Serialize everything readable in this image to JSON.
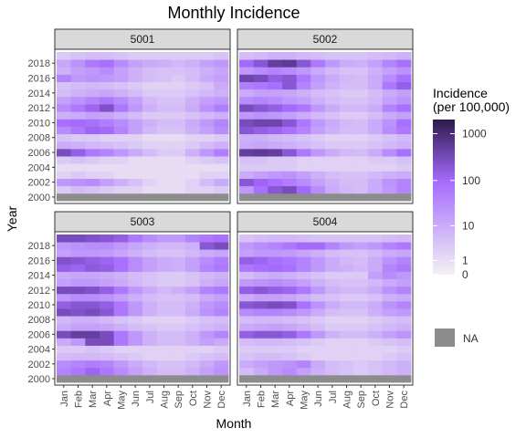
{
  "chart_data": {
    "type": "heatmap",
    "title": "Monthly Incidence",
    "xlabel": "Month",
    "ylabel": "Year",
    "months": [
      "Jan",
      "Feb",
      "Mar",
      "Apr",
      "May",
      "Jun",
      "Jul",
      "Aug",
      "Sep",
      "Oct",
      "Nov",
      "Dec"
    ],
    "years": [
      2000,
      2001,
      2002,
      2003,
      2004,
      2005,
      2006,
      2007,
      2008,
      2009,
      2010,
      2011,
      2012,
      2013,
      2014,
      2015,
      2016,
      2017,
      2018,
      2019
    ],
    "y_tick_labels": [
      "2000",
      "2002",
      "2004",
      "2006",
      "2008",
      "2010",
      "2012",
      "2014",
      "2016",
      "2018"
    ],
    "legend": {
      "title_line1": "Incidence",
      "title_line2": "(per 100,000)",
      "scale": "log",
      "breaks": [
        {
          "value": 0,
          "label": "0"
        },
        {
          "value": 1,
          "label": "1"
        },
        {
          "value": 10,
          "label": "10"
        },
        {
          "value": 100,
          "label": "100"
        },
        {
          "value": 1000,
          "label": "1000"
        }
      ],
      "max": 2000,
      "na_label": "NA",
      "colors": [
        "#f2f2f2",
        "#a66bff",
        "#2d1a4d"
      ],
      "na_color": "#8c8c8c"
    },
    "facets": [
      {
        "name": "5001",
        "values": [
          [
            null,
            null,
            null,
            null,
            null,
            null,
            null,
            null,
            null,
            null,
            null,
            null
          ],
          [
            3,
            5,
            4,
            3,
            2,
            2,
            1,
            1,
            1,
            2,
            2,
            3
          ],
          [
            20,
            25,
            30,
            15,
            8,
            4,
            2,
            1,
            1,
            2,
            5,
            10
          ],
          [
            2,
            3,
            2,
            2,
            1,
            1,
            1,
            1,
            1,
            1,
            2,
            2
          ],
          [
            1,
            1,
            1,
            1,
            1,
            1,
            1,
            1,
            1,
            1,
            1,
            1
          ],
          [
            3,
            4,
            3,
            2,
            2,
            1,
            1,
            1,
            1,
            2,
            3,
            4
          ],
          [
            300,
            150,
            60,
            40,
            20,
            10,
            5,
            3,
            3,
            8,
            20,
            50
          ],
          [
            10,
            8,
            6,
            5,
            4,
            3,
            2,
            2,
            2,
            3,
            5,
            8
          ],
          [
            4,
            3,
            3,
            2,
            2,
            2,
            1,
            1,
            1,
            2,
            2,
            3
          ],
          [
            30,
            60,
            120,
            100,
            40,
            15,
            6,
            4,
            4,
            8,
            15,
            30
          ],
          [
            80,
            100,
            80,
            50,
            30,
            15,
            8,
            5,
            5,
            10,
            20,
            40
          ],
          [
            8,
            10,
            15,
            12,
            8,
            5,
            3,
            3,
            3,
            4,
            6,
            8
          ],
          [
            30,
            60,
            120,
            250,
            60,
            20,
            8,
            5,
            5,
            10,
            25,
            50
          ],
          [
            15,
            25,
            40,
            60,
            30,
            15,
            6,
            4,
            4,
            8,
            15,
            20
          ],
          [
            5,
            8,
            10,
            12,
            8,
            5,
            3,
            3,
            3,
            4,
            6,
            8
          ],
          [
            4,
            5,
            6,
            5,
            4,
            3,
            2,
            2,
            2,
            3,
            4,
            10
          ],
          [
            40,
            20,
            25,
            20,
            15,
            8,
            5,
            4,
            3,
            5,
            10,
            15
          ],
          [
            8,
            15,
            20,
            30,
            15,
            8,
            5,
            4,
            4,
            5,
            8,
            12
          ],
          [
            12,
            25,
            60,
            80,
            30,
            15,
            10,
            8,
            6,
            8,
            15,
            20
          ],
          [
            3,
            4,
            5,
            5,
            4,
            3,
            3,
            3,
            3,
            3,
            3,
            4
          ]
        ]
      },
      {
        "name": "5002",
        "values": [
          [
            null,
            null,
            null,
            null,
            null,
            null,
            null,
            null,
            null,
            null,
            null,
            null
          ],
          [
            20,
            80,
            200,
            300,
            100,
            30,
            10,
            6,
            5,
            10,
            20,
            40
          ],
          [
            200,
            120,
            80,
            50,
            30,
            15,
            8,
            5,
            5,
            10,
            25,
            40
          ],
          [
            10,
            15,
            20,
            25,
            15,
            8,
            5,
            4,
            4,
            6,
            8,
            10
          ],
          [
            3,
            3,
            3,
            3,
            2,
            2,
            2,
            2,
            2,
            2,
            2,
            3
          ],
          [
            4,
            4,
            3,
            3,
            2,
            2,
            2,
            2,
            2,
            3,
            3,
            4
          ],
          [
            500,
            600,
            500,
            200,
            60,
            20,
            10,
            6,
            5,
            10,
            30,
            80
          ],
          [
            10,
            12,
            10,
            8,
            6,
            4,
            3,
            3,
            3,
            4,
            6,
            8
          ],
          [
            8,
            8,
            6,
            5,
            4,
            3,
            2,
            2,
            2,
            3,
            4,
            6
          ],
          [
            200,
            150,
            120,
            80,
            40,
            15,
            8,
            5,
            5,
            10,
            30,
            60
          ],
          [
            300,
            400,
            400,
            200,
            60,
            20,
            10,
            6,
            5,
            10,
            25,
            80
          ],
          [
            20,
            25,
            20,
            15,
            10,
            6,
            4,
            3,
            3,
            5,
            10,
            15
          ],
          [
            300,
            200,
            150,
            100,
            60,
            20,
            10,
            6,
            6,
            10,
            40,
            80
          ],
          [
            30,
            40,
            30,
            20,
            15,
            8,
            5,
            4,
            4,
            6,
            15,
            25
          ],
          [
            10,
            15,
            15,
            12,
            8,
            5,
            4,
            3,
            3,
            5,
            10,
            15
          ],
          [
            50,
            60,
            80,
            200,
            40,
            15,
            8,
            5,
            5,
            10,
            60,
            150
          ],
          [
            400,
            300,
            150,
            200,
            60,
            20,
            10,
            6,
            5,
            10,
            30,
            80
          ],
          [
            20,
            30,
            40,
            30,
            20,
            10,
            6,
            4,
            4,
            8,
            15,
            25
          ],
          [
            100,
            200,
            500,
            600,
            200,
            60,
            20,
            10,
            8,
            15,
            40,
            80
          ],
          [
            5,
            6,
            8,
            8,
            6,
            5,
            4,
            4,
            4,
            5,
            6,
            8
          ]
        ]
      },
      {
        "name": "5003",
        "values": [
          [
            null,
            null,
            null,
            null,
            null,
            null,
            null,
            null,
            null,
            null,
            null,
            null
          ],
          [
            40,
            60,
            120,
            60,
            30,
            15,
            8,
            5,
            5,
            8,
            15,
            25
          ],
          [
            30,
            40,
            50,
            40,
            20,
            10,
            6,
            4,
            4,
            6,
            10,
            20
          ],
          [
            5,
            6,
            6,
            5,
            4,
            3,
            2,
            2,
            2,
            3,
            4,
            5
          ],
          [
            3,
            3,
            4,
            3,
            2,
            2,
            2,
            2,
            2,
            2,
            2,
            3
          ],
          [
            10,
            20,
            300,
            300,
            60,
            20,
            8,
            5,
            5,
            8,
            15,
            10
          ],
          [
            300,
            500,
            500,
            300,
            60,
            20,
            8,
            5,
            5,
            8,
            20,
            40
          ],
          [
            10,
            15,
            15,
            12,
            8,
            5,
            4,
            3,
            3,
            4,
            6,
            8
          ],
          [
            6,
            8,
            8,
            6,
            4,
            3,
            2,
            2,
            2,
            3,
            4,
            5
          ],
          [
            300,
            250,
            300,
            200,
            60,
            20,
            8,
            5,
            5,
            10,
            25,
            40
          ],
          [
            150,
            200,
            200,
            150,
            60,
            20,
            8,
            5,
            5,
            8,
            20,
            30
          ],
          [
            20,
            30,
            30,
            25,
            15,
            8,
            5,
            4,
            4,
            5,
            10,
            15
          ],
          [
            300,
            300,
            250,
            150,
            60,
            20,
            10,
            6,
            8,
            15,
            40,
            60
          ],
          [
            15,
            20,
            20,
            15,
            10,
            6,
            4,
            3,
            3,
            4,
            8,
            12
          ],
          [
            10,
            12,
            12,
            10,
            8,
            5,
            4,
            3,
            3,
            4,
            6,
            8
          ],
          [
            150,
            120,
            180,
            150,
            80,
            30,
            15,
            10,
            8,
            15,
            40,
            60
          ],
          [
            250,
            200,
            150,
            120,
            80,
            30,
            15,
            10,
            8,
            15,
            30,
            50
          ],
          [
            15,
            20,
            20,
            18,
            12,
            8,
            5,
            4,
            4,
            6,
            10,
            12
          ],
          [
            20,
            25,
            30,
            30,
            20,
            12,
            8,
            6,
            6,
            8,
            200,
            300
          ],
          [
            300,
            300,
            250,
            200,
            150,
            60,
            30,
            20,
            20,
            40,
            60,
            80
          ]
        ]
      },
      {
        "name": "5004",
        "values": [
          [
            null,
            null,
            null,
            null,
            null,
            null,
            null,
            null,
            null,
            null,
            null,
            null
          ],
          [
            5,
            10,
            20,
            30,
            15,
            8,
            5,
            4,
            3,
            4,
            6,
            8
          ],
          [
            10,
            15,
            20,
            25,
            40,
            10,
            5,
            4,
            3,
            4,
            6,
            8
          ],
          [
            4,
            5,
            5,
            4,
            3,
            2,
            2,
            2,
            2,
            2,
            3,
            4
          ],
          [
            3,
            3,
            3,
            3,
            2,
            2,
            2,
            2,
            2,
            2,
            2,
            3
          ],
          [
            5,
            6,
            6,
            5,
            4,
            3,
            2,
            2,
            2,
            3,
            4,
            5
          ],
          [
            150,
            200,
            200,
            150,
            60,
            20,
            8,
            5,
            5,
            8,
            15,
            25
          ],
          [
            10,
            12,
            15,
            12,
            8,
            5,
            3,
            3,
            3,
            4,
            6,
            8
          ],
          [
            5,
            6,
            6,
            5,
            4,
            3,
            2,
            2,
            2,
            3,
            4,
            5
          ],
          [
            30,
            40,
            40,
            30,
            20,
            10,
            5,
            4,
            4,
            8,
            15,
            20
          ],
          [
            200,
            250,
            300,
            250,
            80,
            25,
            10,
            6,
            6,
            10,
            25,
            40
          ],
          [
            10,
            15,
            15,
            12,
            8,
            5,
            4,
            3,
            3,
            4,
            8,
            10
          ],
          [
            150,
            200,
            150,
            120,
            60,
            20,
            8,
            6,
            6,
            10,
            25,
            40
          ],
          [
            20,
            25,
            30,
            25,
            15,
            8,
            5,
            4,
            4,
            6,
            10,
            15
          ],
          [
            5,
            8,
            10,
            8,
            6,
            4,
            3,
            3,
            3,
            15,
            30,
            20
          ],
          [
            60,
            80,
            100,
            80,
            40,
            20,
            10,
            8,
            6,
            10,
            40,
            60
          ],
          [
            150,
            120,
            80,
            60,
            40,
            20,
            10,
            6,
            5,
            10,
            25,
            40
          ],
          [
            15,
            20,
            20,
            18,
            12,
            8,
            5,
            4,
            4,
            6,
            10,
            12
          ],
          [
            20,
            30,
            40,
            60,
            100,
            100,
            40,
            20,
            15,
            20,
            40,
            60
          ],
          [
            4,
            5,
            6,
            6,
            5,
            4,
            4,
            4,
            4,
            4,
            5,
            6
          ]
        ]
      }
    ]
  }
}
